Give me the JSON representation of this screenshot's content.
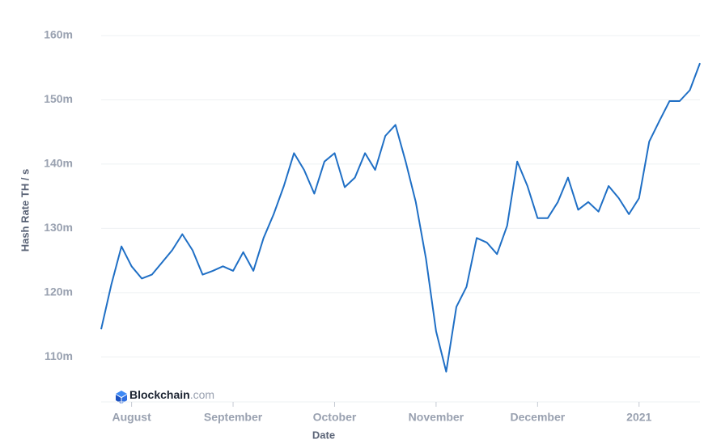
{
  "chart_data": {
    "type": "line",
    "brand": {
      "name": "Blockchain",
      "suffix": ".com"
    },
    "xlabel": "Date",
    "ylabel": "Hash Rate TH / s",
    "categories": [
      null,
      null,
      null,
      "August",
      null,
      null,
      null,
      null,
      null,
      null,
      null,
      null,
      null,
      "September",
      null,
      null,
      null,
      null,
      null,
      null,
      null,
      null,
      null,
      "October",
      null,
      null,
      null,
      null,
      null,
      null,
      null,
      null,
      null,
      "November",
      null,
      null,
      null,
      null,
      null,
      null,
      null,
      null,
      null,
      "December",
      null,
      null,
      null,
      null,
      null,
      null,
      null,
      null,
      null,
      "2021",
      null,
      null,
      null,
      null,
      null,
      null
    ],
    "series": [
      {
        "name": "Hash Rate",
        "color": "#1f6fc5",
        "values": [
          114.3,
          121.2,
          127.2,
          124.1,
          122.2,
          122.8,
          124.7,
          126.6,
          129.1,
          126.6,
          122.8,
          123.4,
          124.1,
          123.4,
          126.3,
          123.4,
          128.5,
          132.2,
          136.6,
          141.7,
          139.1,
          135.4,
          140.4,
          141.7,
          136.4,
          137.9,
          141.7,
          139.1,
          144.4,
          146.1,
          140.4,
          134.1,
          125.3,
          114.0,
          107.7,
          117.8,
          120.9,
          128.5,
          127.8,
          126.0,
          130.4,
          140.4,
          136.6,
          131.6,
          131.6,
          134.1,
          137.9,
          132.9,
          134.1,
          132.6,
          136.6,
          134.7,
          132.2,
          134.7,
          143.5,
          146.7,
          149.8,
          149.8,
          151.5,
          155.7
        ]
      }
    ],
    "ylim": [
      103,
      160.5
    ],
    "yticks": [
      {
        "value": 110,
        "label": "110m"
      },
      {
        "value": 120,
        "label": "120m"
      },
      {
        "value": 130,
        "label": "130m"
      },
      {
        "value": 140,
        "label": "140m"
      },
      {
        "value": 150,
        "label": "150m"
      },
      {
        "value": 160,
        "label": "160m"
      }
    ],
    "grid": true
  }
}
